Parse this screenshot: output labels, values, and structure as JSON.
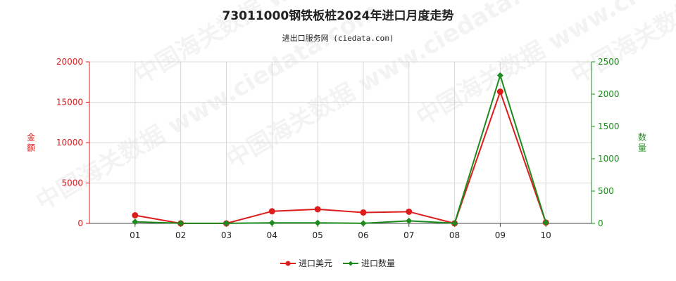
{
  "chart_data": {
    "type": "line",
    "title": "73011000钢铁板桩2024年进口月度走势",
    "subtitle": "进出口服务网 (ciedata.com)",
    "categories": [
      "01",
      "02",
      "03",
      "04",
      "05",
      "06",
      "07",
      "08",
      "09",
      "10"
    ],
    "y_left": {
      "label": "金额",
      "ticks": [
        0,
        5000,
        10000,
        15000,
        20000
      ],
      "lim": [
        0,
        20000
      ],
      "color": "#dd1c1c"
    },
    "y_right": {
      "label": "数量",
      "ticks": [
        0,
        500,
        1000,
        1500,
        2000,
        2500
      ],
      "lim": [
        0,
        2500
      ],
      "color": "#1e8a1e"
    },
    "series": [
      {
        "name": "进口美元",
        "axis": "left",
        "color": "#dd1c1c",
        "values": [
          1000,
          0,
          0,
          1500,
          1750,
          1350,
          1450,
          0,
          16300,
          100
        ]
      },
      {
        "name": "进口数量",
        "axis": "right",
        "color": "#1e8a1e",
        "values": [
          25,
          2,
          2,
          8,
          8,
          2,
          40,
          2,
          2290,
          12
        ]
      }
    ],
    "grid": true,
    "legend_position": "bottom-center",
    "watermark": "中国海关数据 www.ciedata.com"
  }
}
